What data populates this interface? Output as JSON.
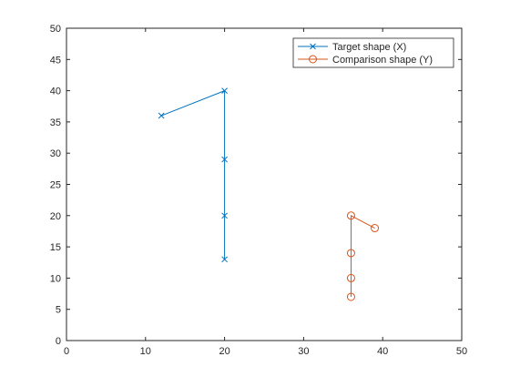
{
  "chart_data": {
    "type": "line",
    "title": "",
    "xlabel": "",
    "ylabel": "",
    "xlim": [
      0,
      50
    ],
    "ylim": [
      0,
      50
    ],
    "x_ticks": [
      0,
      10,
      20,
      30,
      40,
      50
    ],
    "y_ticks": [
      0,
      5,
      10,
      15,
      20,
      25,
      30,
      35,
      40,
      45,
      50
    ],
    "grid": false,
    "legend_position": "top-right",
    "series": [
      {
        "name": "Target shape (X)",
        "color": "#0072BD",
        "marker": "x",
        "points": [
          {
            "x": 12,
            "y": 36
          },
          {
            "x": 20,
            "y": 40
          },
          {
            "x": 20,
            "y": 29
          },
          {
            "x": 20,
            "y": 20
          },
          {
            "x": 20,
            "y": 13
          }
        ]
      },
      {
        "name": "Comparison shape (Y)",
        "color": "#D95319",
        "marker": "o",
        "points": [
          {
            "x": 39,
            "y": 18
          },
          {
            "x": 36,
            "y": 20
          },
          {
            "x": 36,
            "y": 14
          },
          {
            "x": 36,
            "y": 10
          },
          {
            "x": 36,
            "y": 7
          }
        ]
      }
    ]
  }
}
